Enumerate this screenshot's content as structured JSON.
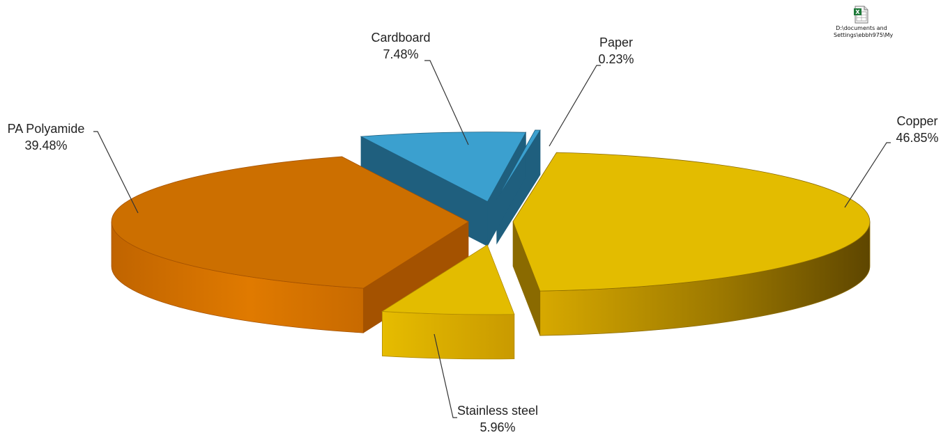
{
  "chart_data": {
    "type": "pie",
    "title": "",
    "legend": "none",
    "slices": [
      {
        "label": "Copper",
        "value": 46.85,
        "value_label": "46.85%",
        "color": "#e3bc00"
      },
      {
        "label": "Stainless steel",
        "value": 5.96,
        "value_label": "5.96%",
        "color": "#e3bc00"
      },
      {
        "label": "PA Polyamide",
        "value": 39.48,
        "value_label": "39.48%",
        "color": "#cc6f00"
      },
      {
        "label": "Cardboard",
        "value": 7.48,
        "value_label": "7.48%",
        "color": "#3ba0cf"
      },
      {
        "label": "Paper",
        "value": 0.23,
        "value_label": "0.23%",
        "color": "#3ba0cf"
      }
    ]
  },
  "embedded_object": {
    "icon": "excel-file-icon",
    "caption_lines": [
      "D:\\documents and",
      "Settings\\ebbh975\\My"
    ]
  }
}
